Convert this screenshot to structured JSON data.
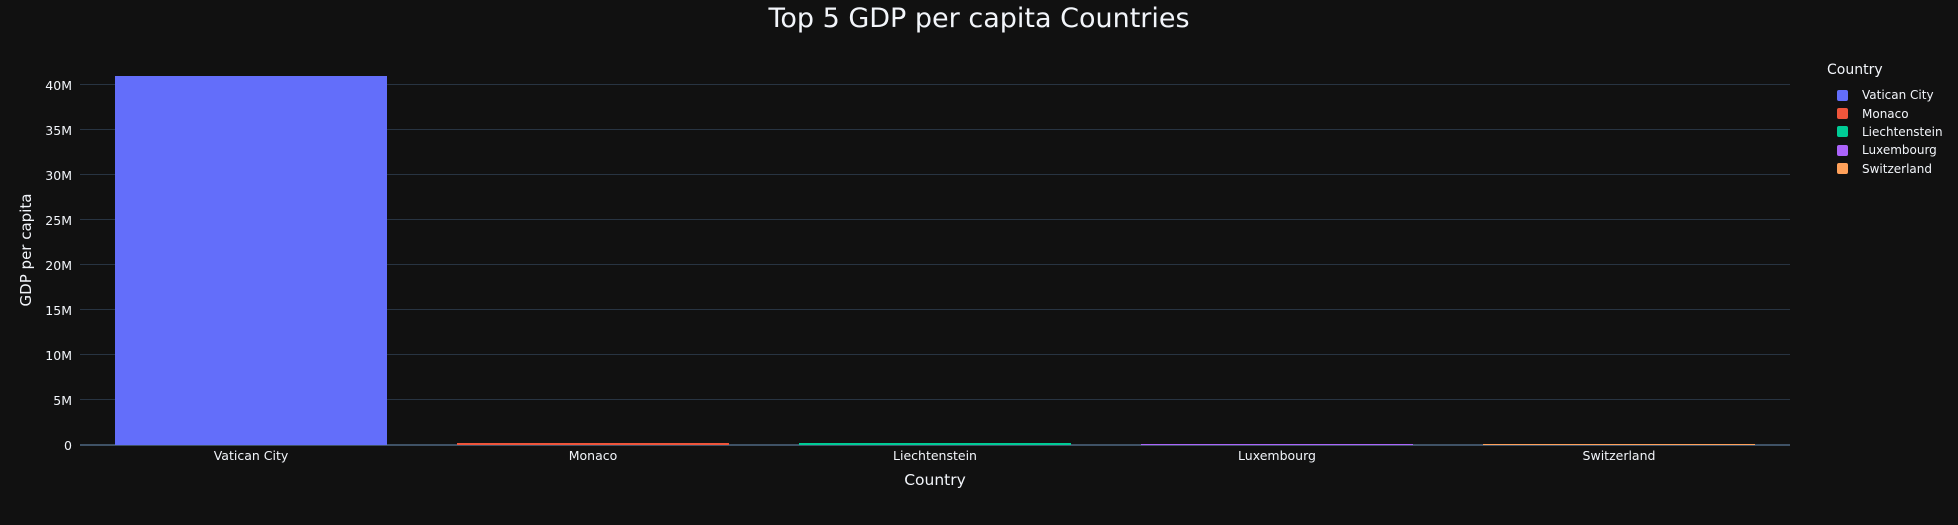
{
  "title": "Top 5 GDP per capita Countries",
  "colors": {
    "background": "#111111",
    "text": "#f2f5fa",
    "grid": "#283442",
    "axis_line": "#3f5266"
  },
  "y_axis": {
    "title": "GDP per capita",
    "tick_labels": [
      "0",
      "5M",
      "10M",
      "15M",
      "20M",
      "25M",
      "30M",
      "35M",
      "40M"
    ],
    "tick_values": [
      0,
      5000000,
      10000000,
      15000000,
      20000000,
      25000000,
      30000000,
      35000000,
      40000000
    ]
  },
  "x_axis": {
    "title": "Country",
    "categories": [
      "Vatican City",
      "Monaco",
      "Liechtenstein",
      "Luxembourg",
      "Switzerland"
    ]
  },
  "legend": {
    "title": "Country",
    "items": [
      {
        "label": "Vatican City",
        "color": "#636EFA"
      },
      {
        "label": "Monaco",
        "color": "#EF553B"
      },
      {
        "label": "Liechtenstein",
        "color": "#00CC96"
      },
      {
        "label": "Luxembourg",
        "color": "#AB63FA"
      },
      {
        "label": "Switzerland",
        "color": "#FFA15A"
      }
    ]
  },
  "chart_data": {
    "type": "bar",
    "title": "Top 5 GDP per capita Countries",
    "xlabel": "Country",
    "ylabel": "GDP per capita",
    "categories": [
      "Vatican City",
      "Monaco",
      "Liechtenstein",
      "Luxembourg",
      "Switzerland"
    ],
    "values": [
      41000000,
      240000,
      187000,
      133000,
      100000
    ],
    "bar_colors": [
      "#636EFA",
      "#EF553B",
      "#00CC96",
      "#AB63FA",
      "#FFA15A"
    ],
    "ylim": [
      0,
      43350000
    ],
    "grid": true,
    "legend_position": "right",
    "theme": "dark"
  }
}
